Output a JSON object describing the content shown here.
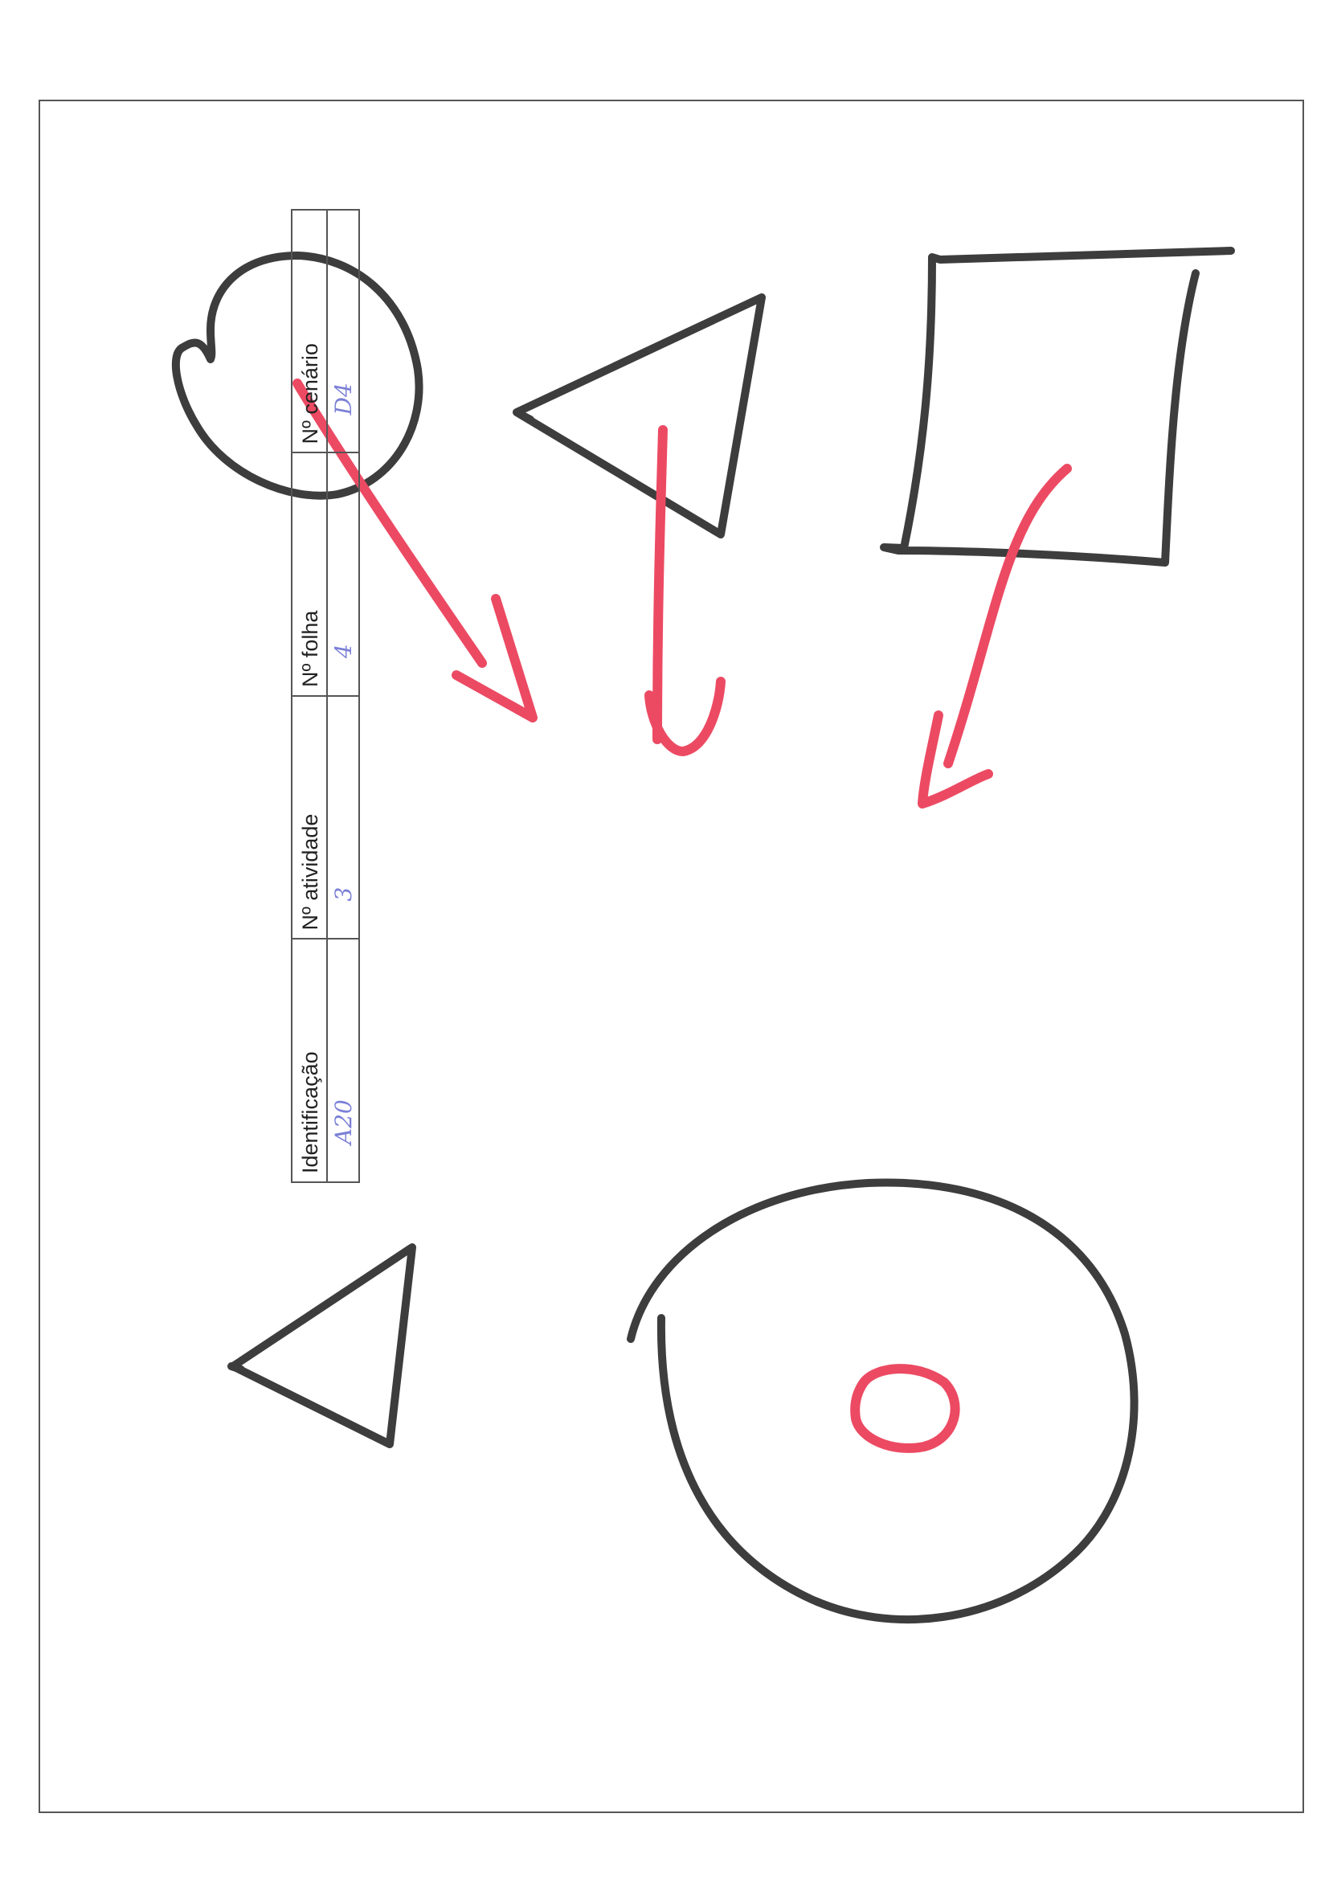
{
  "form": {
    "fields": [
      {
        "label": "Identificação",
        "value": "A20"
      },
      {
        "label": "Nº atividade",
        "value": "3"
      },
      {
        "label": "Nº folha",
        "value": "4"
      },
      {
        "label": "Nº cenário",
        "value": "D4"
      }
    ]
  },
  "colors": {
    "shape_stroke": "#3d3d3d",
    "arrow_stroke": "#ec4a63",
    "handwriting": "#7a7fd6",
    "border": "#555555"
  },
  "drawing": {
    "shapes": [
      "circle-shape",
      "triangle-shape",
      "square-shape",
      "triangle-shape",
      "large-circle-shape"
    ],
    "marks": [
      "red-arrow",
      "red-arrow",
      "red-arrow",
      "red-ring"
    ]
  }
}
